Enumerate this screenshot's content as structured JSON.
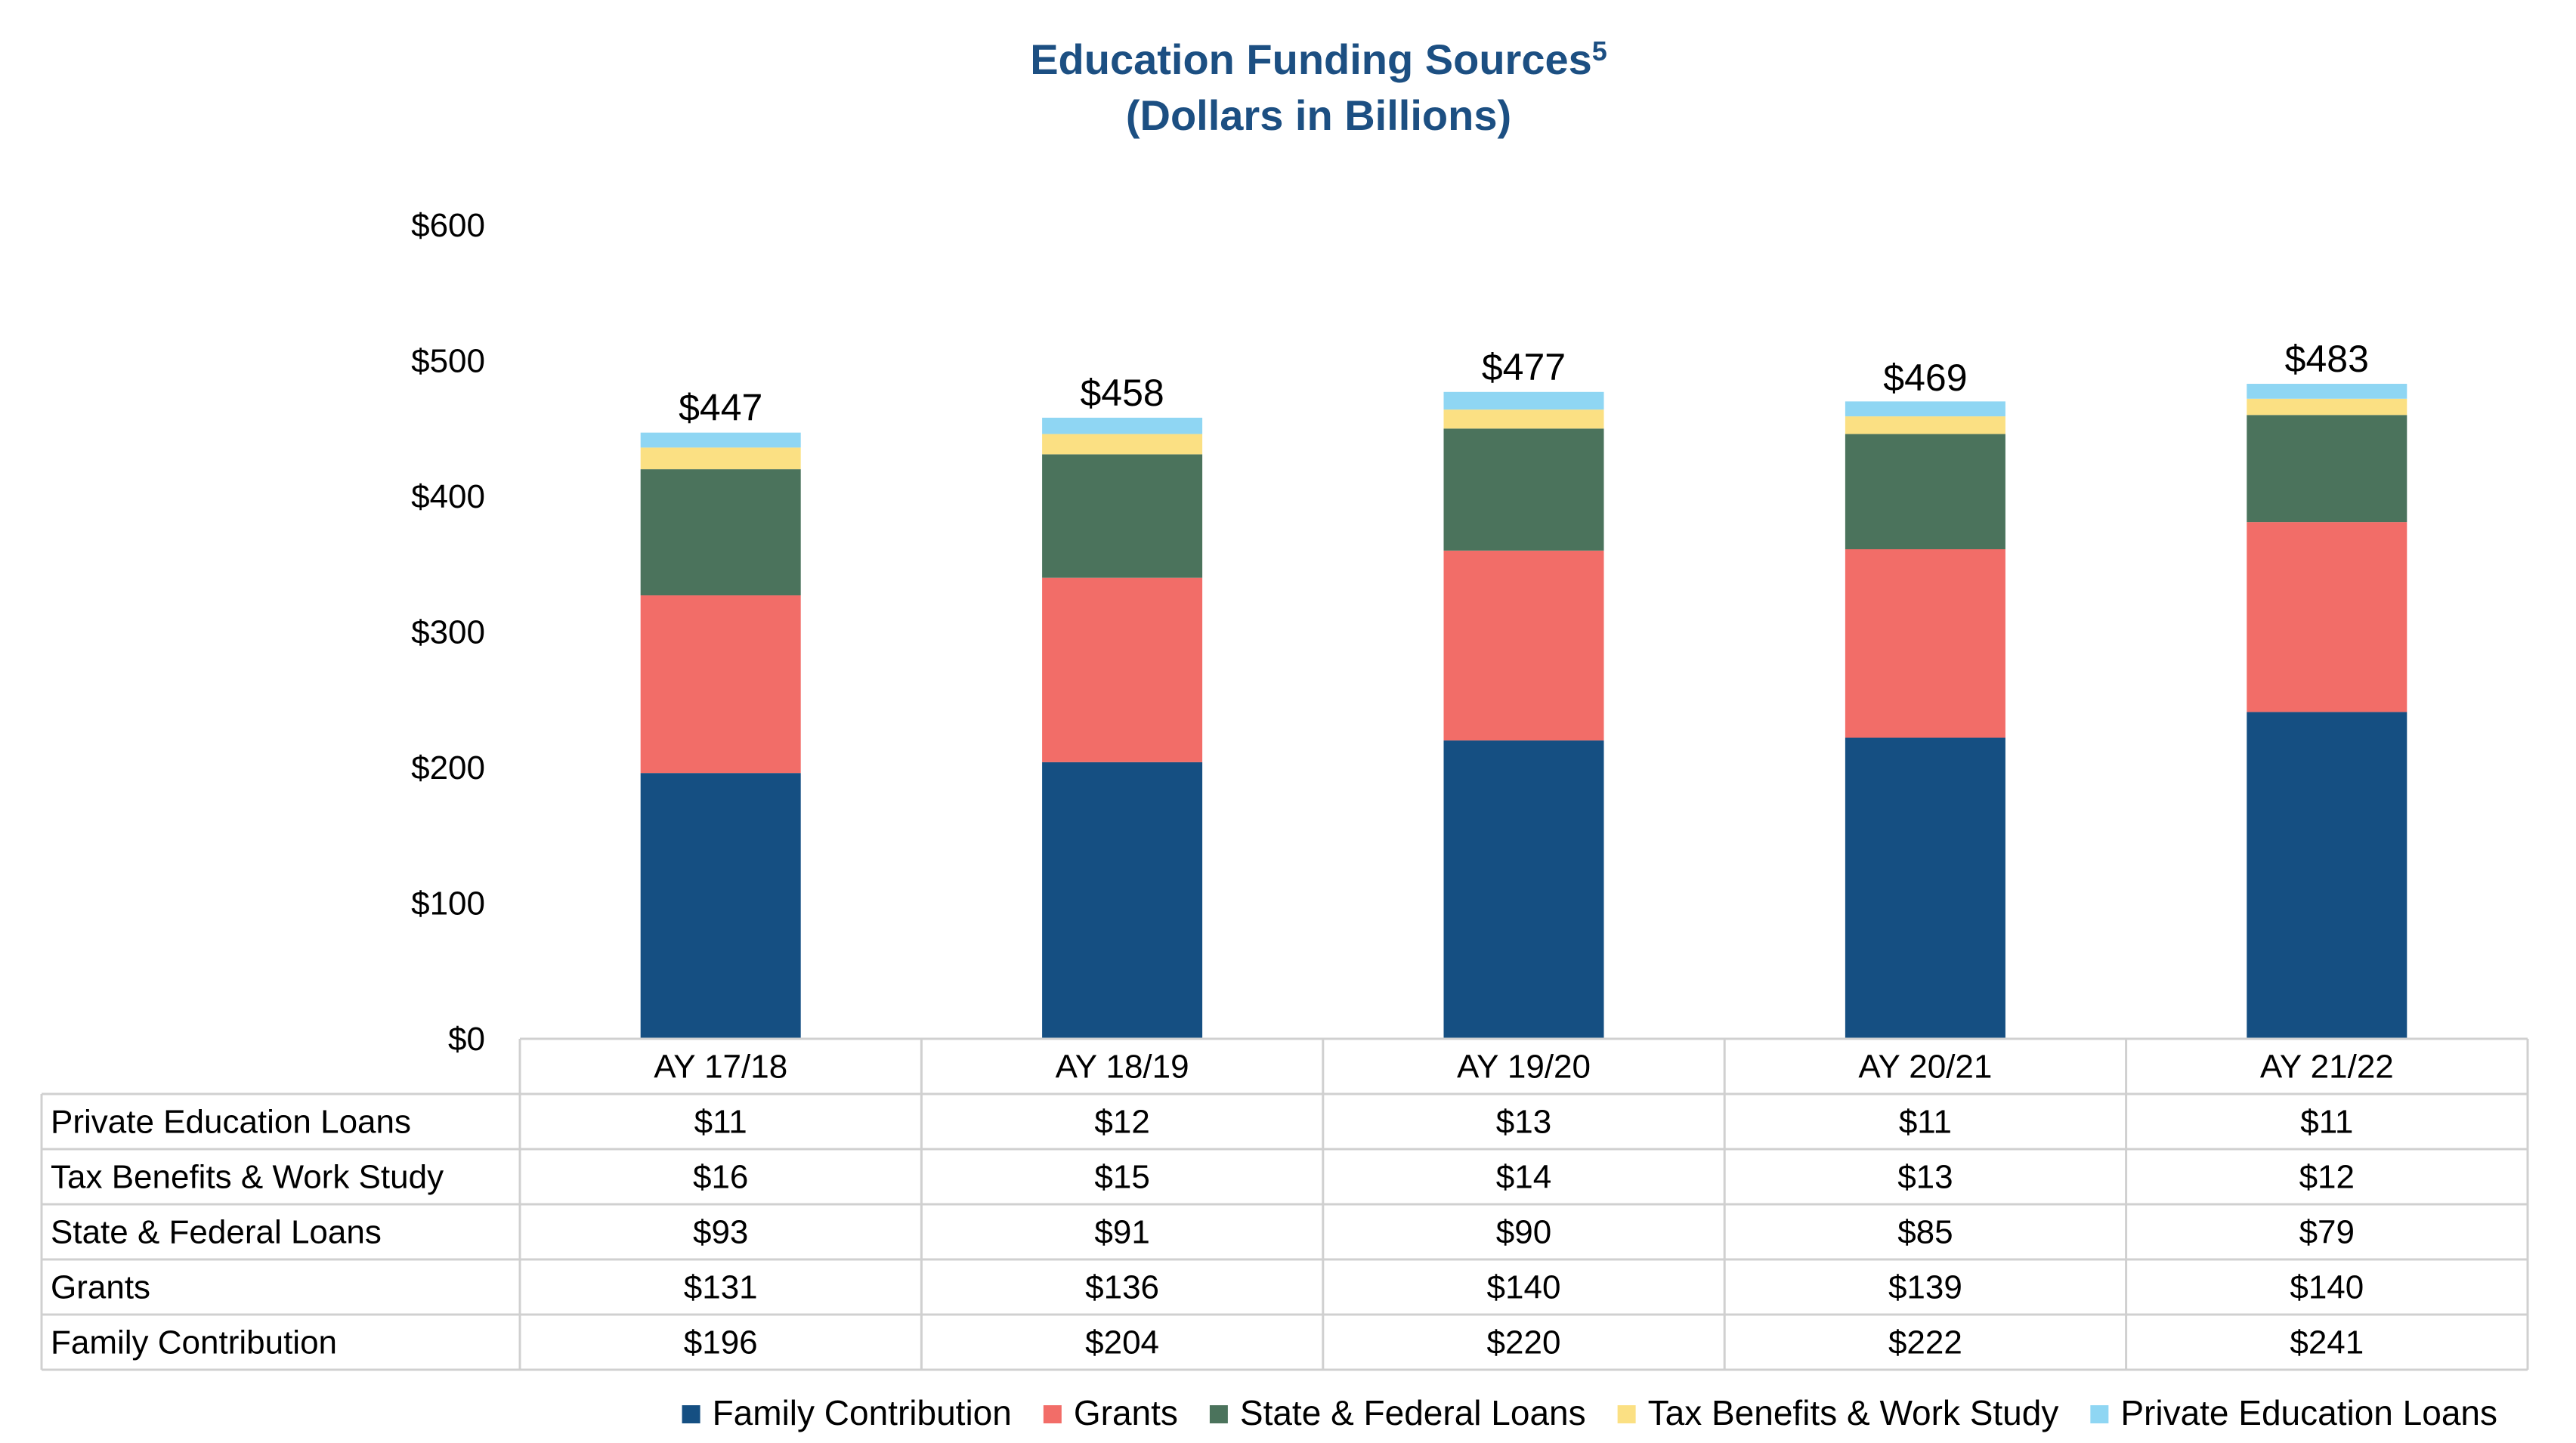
{
  "chart_data": {
    "type": "bar",
    "stacked": true,
    "title": "Education Funding Sources",
    "title_superscript": "5",
    "subtitle": "(Dollars in Billions)",
    "categories": [
      "AY 17/18",
      "AY 18/19",
      "AY 19/20",
      "AY 20/21",
      "AY 21/22"
    ],
    "ylim": [
      0,
      600
    ],
    "yticks": [
      "$0",
      "$100",
      "$200",
      "$300",
      "$400",
      "$500",
      "$600"
    ],
    "ytick_values": [
      0,
      100,
      200,
      300,
      400,
      500,
      600
    ],
    "totals": [
      "$447",
      "$458",
      "$477",
      "$469",
      "$483"
    ],
    "total_values": [
      447,
      458,
      477,
      469,
      483
    ],
    "series": [
      {
        "name": "Family Contribution",
        "color": "#154f82",
        "values": [
          196,
          204,
          220,
          222,
          241
        ],
        "labels": [
          "$196",
          "$204",
          "$220",
          "$222",
          "$241"
        ]
      },
      {
        "name": "Grants",
        "color": "#f26d68",
        "values": [
          131,
          136,
          140,
          139,
          140
        ],
        "labels": [
          "$131",
          "$136",
          "$140",
          "$139",
          "$140"
        ]
      },
      {
        "name": "State & Federal Loans",
        "color": "#4b735c",
        "values": [
          93,
          91,
          90,
          85,
          79
        ],
        "labels": [
          "$93",
          "$91",
          "$90",
          "$85",
          "$79"
        ]
      },
      {
        "name": "Tax Benefits & Work Study",
        "color": "#fbe083",
        "values": [
          16,
          15,
          14,
          13,
          12
        ],
        "labels": [
          "$16",
          "$15",
          "$14",
          "$13",
          "$12"
        ]
      },
      {
        "name": "Private Education Loans",
        "color": "#8fd6f3",
        "values": [
          11,
          12,
          13,
          11,
          11
        ],
        "labels": [
          "$11",
          "$12",
          "$13",
          "$11",
          "$11"
        ]
      }
    ],
    "table_row_order": [
      "Private Education Loans",
      "Tax Benefits & Work Study",
      "State & Federal Loans",
      "Grants",
      "Family Contribution"
    ],
    "legend_position": "bottom"
  }
}
